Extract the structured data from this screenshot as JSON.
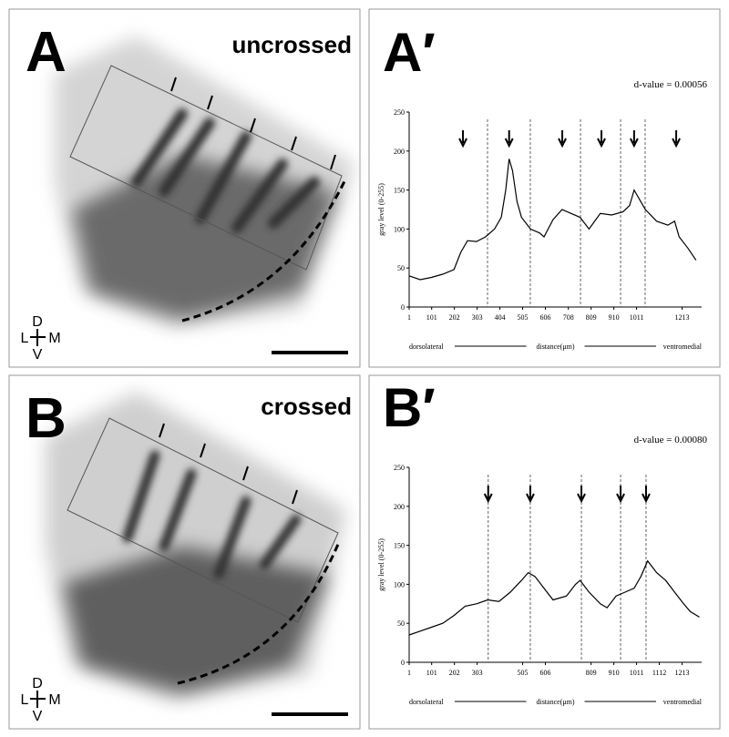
{
  "panels": [
    {
      "label": "A",
      "condition": "uncrossed"
    },
    {
      "label": "B",
      "condition": "crossed"
    }
  ],
  "orientation": {
    "dorsal": "D",
    "lateral": "L",
    "medial": "M",
    "ventral": "V"
  },
  "chart_data": [
    {
      "type": "line",
      "panel_label": "A′",
      "annotation": "d-value = 0.00056",
      "ylabel": "gray level (0-255)",
      "xlabel": "distance(μm)",
      "x_start_label": "dorsolateral",
      "x_end_label": "ventromedial",
      "x": [
        1,
        50,
        100,
        150,
        200,
        230,
        260,
        300,
        340,
        380,
        410,
        430,
        445,
        460,
        480,
        500,
        540,
        580,
        600,
        640,
        680,
        720,
        760,
        800,
        850,
        900,
        950,
        980,
        1000,
        1020,
        1050,
        1100,
        1150,
        1180,
        1200,
        1240,
        1275
      ],
      "series": [
        {
          "color": "#000000",
          "values": [
            40,
            35,
            38,
            42,
            48,
            70,
            85,
            84,
            90,
            100,
            115,
            150,
            190,
            175,
            135,
            115,
            100,
            95,
            90,
            112,
            125,
            120,
            115,
            100,
            120,
            118,
            122,
            130,
            150,
            140,
            125,
            110,
            105,
            110,
            90,
            75,
            60
          ]
        }
      ],
      "xlim": [
        1,
        1300
      ],
      "ylim": [
        0,
        250
      ],
      "xticks": [
        1,
        101,
        202,
        303,
        404,
        505,
        606,
        708,
        809,
        910,
        1011,
        1213
      ],
      "yticks": [
        0,
        50,
        100,
        150,
        200,
        250
      ],
      "dashed_lines": [
        349,
        539,
        762,
        940,
        1049
      ],
      "arrows": [
        240,
        445,
        681,
        855,
        1000,
        1187
      ]
    },
    {
      "type": "line",
      "panel_label": "B′",
      "annotation": "d-value = 0.00080",
      "ylabel": "gray level (0-255)",
      "xlabel": "distance(μm)",
      "x_start_label": "dorsolateral",
      "x_end_label": "ventromedial",
      "x": [
        1,
        50,
        100,
        150,
        200,
        250,
        300,
        350,
        400,
        450,
        500,
        530,
        560,
        600,
        640,
        700,
        740,
        760,
        800,
        850,
        880,
        920,
        960,
        1000,
        1030,
        1060,
        1100,
        1140,
        1180,
        1220,
        1250,
        1290
      ],
      "series": [
        {
          "color": "#000000",
          "values": [
            35,
            40,
            45,
            50,
            60,
            72,
            75,
            80,
            78,
            90,
            105,
            115,
            110,
            95,
            80,
            85,
            100,
            105,
            90,
            75,
            70,
            85,
            90,
            95,
            110,
            130,
            115,
            105,
            90,
            75,
            65,
            58
          ]
        }
      ],
      "xlim": [
        1,
        1300
      ],
      "ylim": [
        0,
        250
      ],
      "xticks": [
        1,
        101,
        202,
        303,
        505,
        606,
        809,
        910,
        1011,
        1112,
        1213
      ],
      "yticks": [
        0,
        50,
        100,
        150,
        200,
        250
      ],
      "dashed_lines": [
        352,
        539,
        766,
        940,
        1053
      ],
      "arrows": [
        352,
        539,
        766,
        940,
        1053
      ]
    }
  ]
}
